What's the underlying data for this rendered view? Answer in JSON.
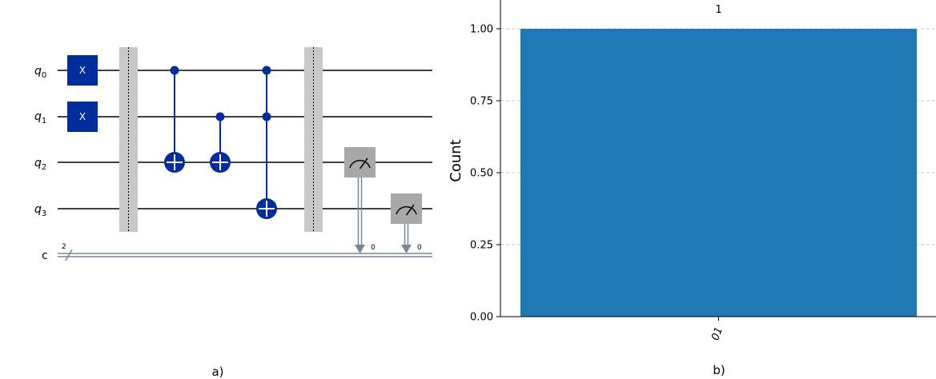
{
  "panel_a": {
    "caption": "a)",
    "qubits": [
      {
        "label": "q",
        "index": "0"
      },
      {
        "label": "q",
        "index": "1"
      },
      {
        "label": "q",
        "index": "2"
      },
      {
        "label": "q",
        "index": "3"
      }
    ],
    "classical": {
      "label": "c",
      "bits": "2"
    },
    "gate_labels": {
      "x": "X"
    },
    "measure_targets": [
      "0",
      "0"
    ],
    "colors": {
      "gate": "#002D9C",
      "barrier": "#BDBDBD",
      "measure": "#A8A8A8",
      "classical": "#778899"
    }
  },
  "panel_b": {
    "caption": "b)",
    "chart_data": {
      "type": "bar",
      "categories": [
        "01"
      ],
      "values": [
        1
      ],
      "data_labels": [
        "1"
      ],
      "ylabel": "Count",
      "ylim": [
        0,
        1.1
      ],
      "yticks": [
        "0.00",
        "0.25",
        "0.50",
        "0.75",
        "1.00"
      ],
      "bar_color": "#1F77B4",
      "grid": "horizontal dashed"
    }
  }
}
